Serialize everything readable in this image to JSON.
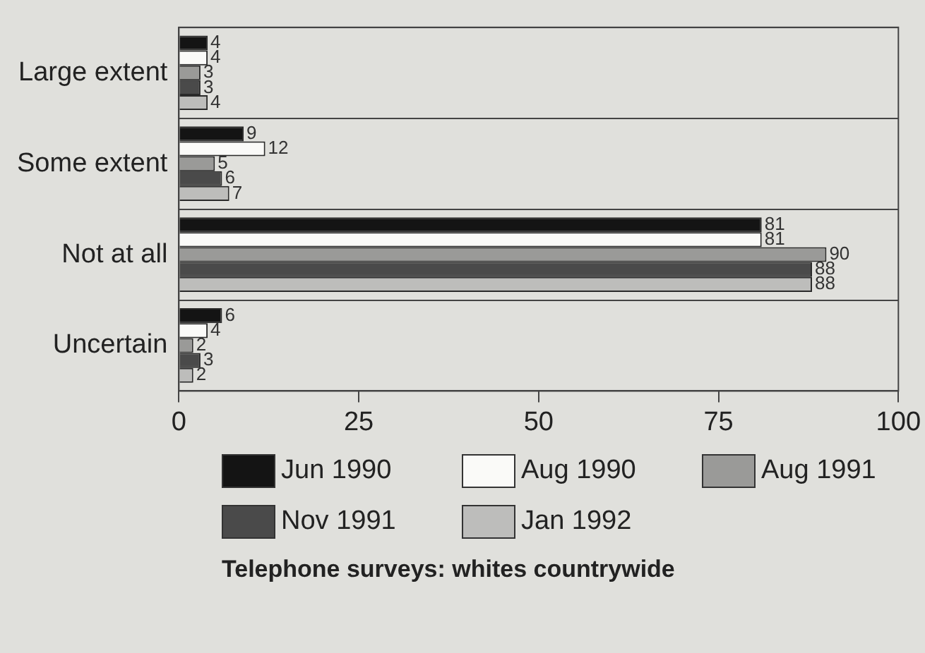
{
  "chart_data": {
    "type": "bar",
    "orientation": "horizontal",
    "title": "Telephone surveys: whites countrywide",
    "categories": [
      "Large extent",
      "Some extent",
      "Not at all",
      "Uncertain"
    ],
    "series": [
      {
        "name": "Jun 1990",
        "color": "#141414",
        "values": [
          4,
          9,
          81,
          6
        ]
      },
      {
        "name": "Aug 1990",
        "color": "#fafaf8",
        "values": [
          4,
          12,
          81,
          4
        ]
      },
      {
        "name": "Aug 1991",
        "color": "#9a9a98",
        "values": [
          3,
          5,
          90,
          2
        ]
      },
      {
        "name": "Nov 1991",
        "color": "#4a4a4a",
        "values": [
          3,
          6,
          88,
          3
        ]
      },
      {
        "name": "Jan 1992",
        "color": "#bdbdbb",
        "values": [
          4,
          7,
          88,
          2
        ]
      }
    ],
    "xlim": [
      0,
      100
    ],
    "xticks": [
      0,
      25,
      50,
      75,
      100
    ],
    "grid": "y",
    "legend": "bottom",
    "data_labels": true
  }
}
